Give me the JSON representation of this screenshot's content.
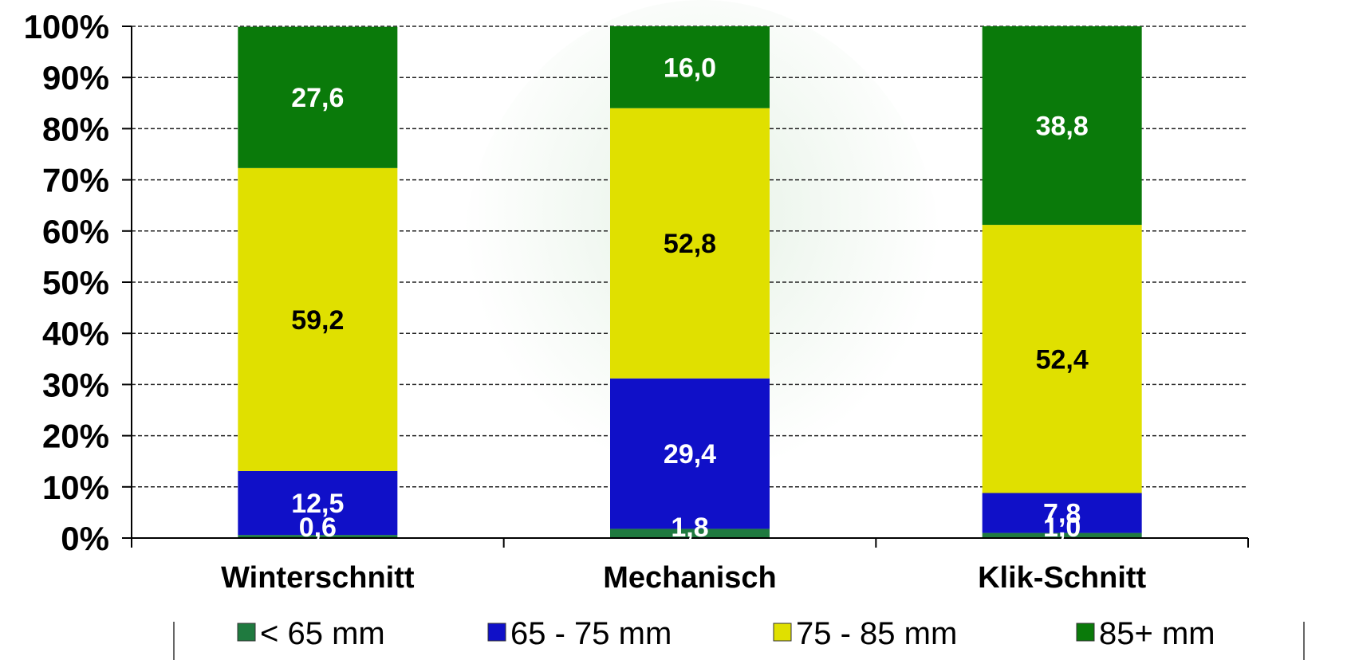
{
  "chart_data": {
    "type": "bar",
    "stacked": true,
    "percent": true,
    "categories": [
      "Winterschnitt",
      "Mechanisch",
      "Klik-Schnitt"
    ],
    "series": [
      {
        "name": "< 65 mm",
        "values": [
          0.6,
          1.8,
          1.0
        ],
        "labels": [
          "0,6",
          "1,8",
          "1,0"
        ],
        "color": "#1f7a3f",
        "label_color": "#ffffff"
      },
      {
        "name": "65 - 75 mm",
        "values": [
          12.5,
          29.4,
          7.8
        ],
        "labels": [
          "12,5",
          "29,4",
          "7,8"
        ],
        "color": "#1010c8",
        "label_color": "#ffffff"
      },
      {
        "name": "75 - 85 mm",
        "values": [
          59.2,
          52.8,
          52.4
        ],
        "labels": [
          "59,2",
          "52,8",
          "52,4"
        ],
        "color": "#e0e000",
        "label_color": "#000000"
      },
      {
        "name": "85+ mm",
        "values": [
          27.6,
          16.0,
          38.8
        ],
        "labels": [
          "27,6",
          "16,0",
          "38,8"
        ],
        "color": "#0a7a0a",
        "label_color": "#ffffff"
      }
    ],
    "y_ticks": [
      "0%",
      "10%",
      "20%",
      "30%",
      "40%",
      "50%",
      "60%",
      "70%",
      "80%",
      "90%",
      "100%"
    ],
    "ylim": [
      0,
      100
    ],
    "grid": "horizontal-dashed",
    "legend_position": "bottom",
    "title": "",
    "xlabel": "",
    "ylabel": ""
  }
}
